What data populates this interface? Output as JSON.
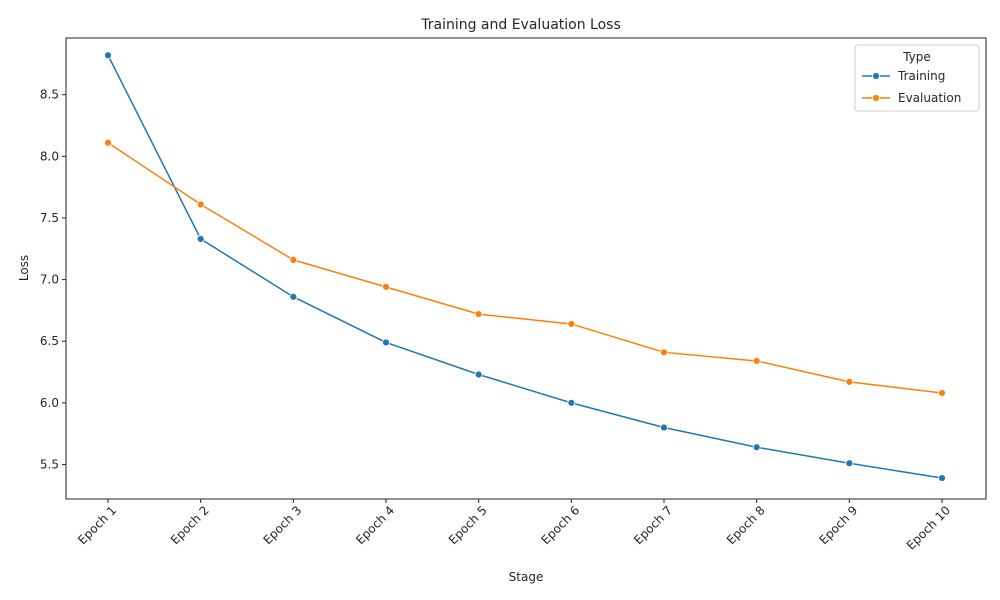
{
  "chart_data": {
    "type": "line",
    "title": "Training and Evaluation Loss",
    "xlabel": "Stage",
    "ylabel": "Loss",
    "categories": [
      "Epoch 1",
      "Epoch 2",
      "Epoch 3",
      "Epoch 4",
      "Epoch 5",
      "Epoch 6",
      "Epoch 7",
      "Epoch 8",
      "Epoch 9",
      "Epoch 10"
    ],
    "ylim": [
      5.22,
      8.96
    ],
    "yticks": [
      5.5,
      6.0,
      6.5,
      7.0,
      7.5,
      8.0,
      8.5
    ],
    "ytick_labels": [
      "5.5",
      "6.0",
      "6.5",
      "7.0",
      "7.5",
      "8.0",
      "8.5"
    ],
    "grid": false,
    "legend": {
      "title": "Type",
      "placement": "top-right"
    },
    "series": [
      {
        "name": "Training",
        "color": "#1f77b4",
        "marker": "circle",
        "values": [
          8.82,
          7.33,
          6.86,
          6.49,
          6.23,
          6.0,
          5.8,
          5.64,
          5.51,
          5.39
        ]
      },
      {
        "name": "Evaluation",
        "color": "#ff7f0e",
        "marker": "circle",
        "values": [
          8.11,
          7.61,
          7.16,
          6.94,
          6.72,
          6.64,
          6.41,
          6.34,
          6.17,
          6.08
        ]
      }
    ]
  }
}
